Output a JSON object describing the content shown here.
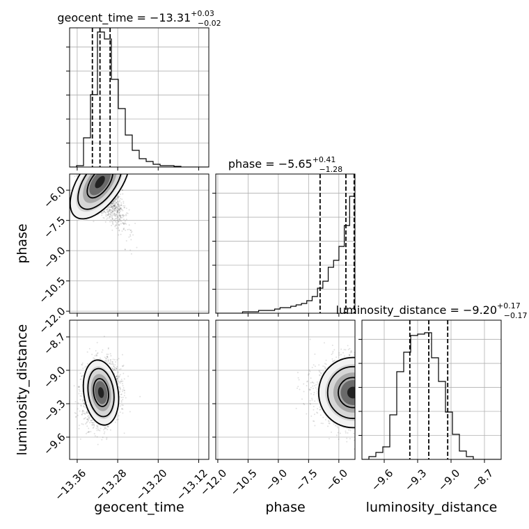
{
  "chart_data": {
    "type": "corner",
    "grid": true,
    "parameters": [
      {
        "key": "geocent_time",
        "axis_label": "geocent_time",
        "title": {
          "prefix": "geocent_time = −13.31",
          "sup": "+0.03",
          "sub": "−0.02"
        },
        "range": [
          -13.375,
          -13.1
        ],
        "ticks": [
          -13.36,
          -13.28,
          -13.2,
          -13.12
        ],
        "tick_labels": [
          "−13.36",
          "−13.28",
          "−13.20",
          "−13.12"
        ],
        "quantiles": [
          -13.33,
          -13.315,
          -13.295
        ],
        "hist": [
          0.0,
          0.01,
          0.21,
          0.52,
          0.97,
          0.92,
          0.63,
          0.42,
          0.23,
          0.12,
          0.06,
          0.04,
          0.02,
          0.01,
          0.01,
          0.005,
          0.0,
          0.0,
          0.0,
          0.0
        ]
      },
      {
        "key": "phase",
        "axis_label": "phase",
        "title": {
          "prefix": "phase = −5.65",
          "sup": "+0.41",
          "sub": "−1.28"
        },
        "range": [
          -12.1,
          -5.2
        ],
        "ticks": [
          -12.0,
          -10.5,
          -9.0,
          -7.5,
          -6.0
        ],
        "tick_labels": [
          "−12.0",
          "−10.5",
          "−9.0",
          "−7.5",
          "−6.0"
        ],
        "quantiles": [
          -6.93,
          -5.65,
          -5.24
        ],
        "hist": [
          0.0,
          0.0,
          0.0,
          0.0,
          0.0,
          0.01,
          0.01,
          0.01,
          0.02,
          0.02,
          0.02,
          0.03,
          0.04,
          0.04,
          0.05,
          0.06,
          0.07,
          0.09,
          0.12,
          0.18,
          0.23,
          0.33,
          0.38,
          0.48,
          0.63,
          0.84
        ]
      },
      {
        "key": "luminosity_distance",
        "axis_label": "luminosity_distance",
        "title": {
          "prefix": "luminosity_distance = −9.20",
          "sup": "+0.17",
          "sub": "−0.17"
        },
        "range": [
          -9.8,
          -8.55
        ],
        "ticks": [
          -9.6,
          -9.3,
          -9.0,
          -8.7
        ],
        "tick_labels": [
          "−9.6",
          "−9.3",
          "−9.0",
          "−8.7"
        ],
        "quantiles": [
          -9.37,
          -9.2,
          -9.03
        ],
        "hist": [
          0.0,
          0.02,
          0.05,
          0.09,
          0.32,
          0.63,
          0.77,
          0.89,
          0.9,
          0.91,
          0.73,
          0.56,
          0.34,
          0.18,
          0.06,
          0.02,
          0.0,
          0.0,
          0.0,
          0.0
        ]
      }
    ],
    "pairs": [
      {
        "x": "geocent_time",
        "y": "phase",
        "mean": [
          -13.315,
          -5.6
        ],
        "sd": [
          0.022,
          1.0
        ],
        "rho": -0.8
      },
      {
        "x": "geocent_time",
        "y": "luminosity_distance",
        "mean": [
          -13.313,
          -9.2
        ],
        "sd": [
          0.018,
          0.14
        ],
        "rho": 0.15
      },
      {
        "x": "phase",
        "y": "luminosity_distance",
        "mean": [
          -5.3,
          -9.2
        ],
        "sd": [
          0.9,
          0.15
        ],
        "rho": 0.0
      }
    ]
  }
}
